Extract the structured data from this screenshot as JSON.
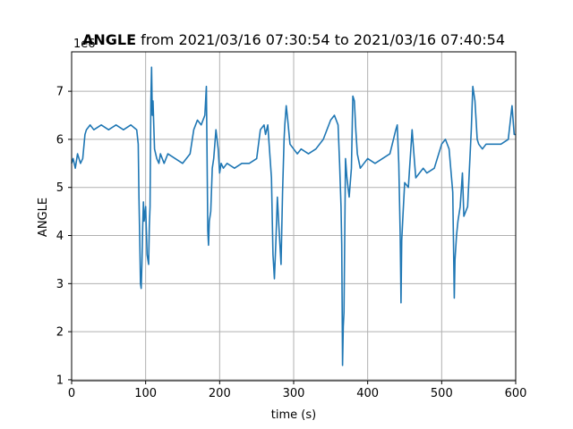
{
  "chart_data": {
    "type": "line",
    "title_bold": "ANGLE",
    "title_rest": " from 2021/03/16 07:30:54 to 2021/03/16 07:40:54",
    "xlabel": "time (s)",
    "ylabel": "ANGLE",
    "offset_label": "1e6",
    "xlim": [
      0,
      600
    ],
    "ylim": [
      0.98,
      7.82
    ],
    "xticks": [
      0,
      100,
      200,
      300,
      400,
      500,
      600
    ],
    "yticks": [
      1,
      2,
      3,
      4,
      5,
      6,
      7
    ],
    "grid": true,
    "line_color": "#1f77b4",
    "series": [
      {
        "x": [
          0,
          2,
          5,
          8,
          12,
          15,
          18,
          20,
          25,
          30,
          40,
          50,
          60,
          70,
          80,
          88,
          90,
          91,
          92,
          93,
          94,
          95,
          96,
          97,
          98,
          100,
          102,
          104,
          105,
          106,
          107,
          108,
          109,
          110,
          112,
          115,
          118,
          120,
          125,
          130,
          140,
          150,
          160,
          165,
          170,
          175,
          180,
          182,
          184,
          185,
          186,
          188,
          190,
          192,
          195,
          198,
          200,
          202,
          205,
          210,
          220,
          230,
          240,
          250,
          255,
          260,
          262,
          265,
          270,
          272,
          274,
          276,
          278,
          280,
          283,
          285,
          287,
          288,
          290,
          292,
          295,
          300,
          305,
          310,
          320,
          330,
          340,
          350,
          355,
          360,
          362,
          364,
          365,
          366,
          367,
          368,
          370,
          372,
          375,
          378,
          380,
          382,
          384,
          386,
          390,
          395,
          400,
          410,
          420,
          430,
          438,
          440,
          442,
          444,
          445,
          446,
          448,
          450,
          455,
          460,
          463,
          465,
          470,
          475,
          480,
          490,
          500,
          505,
          510,
          515,
          517,
          518,
          520,
          522,
          525,
          528,
          530,
          535,
          540,
          542,
          545,
          548,
          550,
          555,
          560,
          570,
          580,
          590,
          595,
          598,
          600
        ],
        "y": [
          5.5,
          5.6,
          5.4,
          5.7,
          5.5,
          5.6,
          6.1,
          6.2,
          6.3,
          6.2,
          6.3,
          6.2,
          6.3,
          6.2,
          6.3,
          6.2,
          5.9,
          4.8,
          3.9,
          3.0,
          2.9,
          3.4,
          4.2,
          4.7,
          4.3,
          4.6,
          3.6,
          3.4,
          4.2,
          4.6,
          6.8,
          7.5,
          6.5,
          6.8,
          5.8,
          5.6,
          5.5,
          5.7,
          5.5,
          5.7,
          5.6,
          5.5,
          5.7,
          6.2,
          6.4,
          6.3,
          6.5,
          7.1,
          4.1,
          3.8,
          4.3,
          4.5,
          5.4,
          5.6,
          6.2,
          5.8,
          5.3,
          5.5,
          5.4,
          5.5,
          5.4,
          5.5,
          5.5,
          5.6,
          6.2,
          6.3,
          6.1,
          6.3,
          5.2,
          3.6,
          3.1,
          3.9,
          4.8,
          4.2,
          3.4,
          4.9,
          6.0,
          6.3,
          6.7,
          6.4,
          5.9,
          5.8,
          5.7,
          5.8,
          5.7,
          5.8,
          6.0,
          6.4,
          6.5,
          6.3,
          5.5,
          4.6,
          3.8,
          1.3,
          2.1,
          2.4,
          5.6,
          5.2,
          4.8,
          5.4,
          6.9,
          6.8,
          6.2,
          5.7,
          5.4,
          5.5,
          5.6,
          5.5,
          5.6,
          5.7,
          6.2,
          6.3,
          5.5,
          4.0,
          2.6,
          3.9,
          4.5,
          5.1,
          5.0,
          6.2,
          5.6,
          5.2,
          5.3,
          5.4,
          5.3,
          5.4,
          5.9,
          6.0,
          5.8,
          4.9,
          2.7,
          3.5,
          4.0,
          4.3,
          4.6,
          5.3,
          4.4,
          4.6,
          6.2,
          7.1,
          6.8,
          6.0,
          5.9,
          5.8,
          5.9,
          5.9,
          5.9,
          6.0,
          6.7,
          6.1,
          6.1
        ]
      }
    ]
  }
}
